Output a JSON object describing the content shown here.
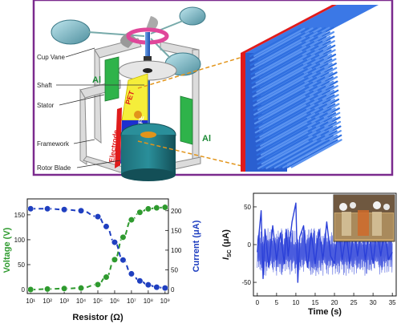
{
  "schematic": {
    "labels": {
      "cup_vane": "Cup Vane",
      "shaft": "Shaft",
      "stator": "Stator",
      "framework": "Framework",
      "rotor_blade": "Rotor Blade",
      "al_left": "Al",
      "al_right": "Al",
      "pet": "PET",
      "ptfe": "PTFE",
      "electrode": "Electrode"
    },
    "colors": {
      "frame_border": "#7b2a8e",
      "nanowire": "#2f6fe0",
      "substrate_edge": "#e01b1b",
      "aluminium": "#2fb34a",
      "pet": "#f5ee3a",
      "ptfe_electrode": "#1d2fd0",
      "cup": "#6fb3c2",
      "connector": "#e2941a"
    }
  },
  "chart_data": [
    {
      "type": "line",
      "xlabel": "Resistor (Ω)",
      "ylabel_left": "Voltage (V)",
      "ylabel_right": "Current (μA)",
      "x_scale": "log",
      "x_ticks": [
        "10¹",
        "10²",
        "10³",
        "10⁴",
        "10⁵",
        "10⁶",
        "10⁷",
        "10⁸",
        "10⁹"
      ],
      "x_tick_values": [
        1,
        2,
        3,
        4,
        5,
        6,
        7,
        8,
        9
      ],
      "y_left_ticks": [
        "0",
        "50",
        "100",
        "150"
      ],
      "y_left_tick_values": [
        0,
        50,
        100,
        150
      ],
      "y_right_ticks": [
        "0",
        "50",
        "100",
        "150",
        "200"
      ],
      "y_right_tick_values": [
        0,
        50,
        100,
        150,
        200
      ],
      "ylim_left": [
        -8,
        182
      ],
      "ylim_right": [
        -10,
        230
      ],
      "xlim": [
        0.8,
        9.2
      ],
      "series": [
        {
          "axis": "left",
          "color": "#2e9a2e",
          "log10_x": [
            1,
            2,
            3,
            4,
            5,
            5.5,
            6,
            6.5,
            7,
            7.5,
            8,
            8.5,
            9
          ],
          "values": [
            0,
            1,
            2,
            3,
            10,
            25,
            60,
            105,
            140,
            155,
            162,
            164,
            165
          ]
        },
        {
          "axis": "right",
          "color": "#1f3fc0",
          "log10_x": [
            1,
            2,
            3,
            4,
            5,
            5.5,
            6,
            6.5,
            7,
            7.5,
            8,
            8.5,
            9
          ],
          "values": [
            205,
            205,
            203,
            200,
            185,
            160,
            120,
            75,
            40,
            22,
            12,
            6,
            4
          ]
        }
      ]
    },
    {
      "type": "line",
      "xlabel": "Time (s)",
      "x_ticks": [
        "0",
        "5",
        "10",
        "15",
        "20",
        "25",
        "30",
        "35"
      ],
      "x_tick_values": [
        0,
        5,
        10,
        15,
        20,
        25,
        30,
        35
      ],
      "y_ticks": [
        "-50",
        "0",
        "50"
      ],
      "y_tick_values": [
        -50,
        0,
        50
      ],
      "xlim": [
        -1,
        36
      ],
      "ylim": [
        -68,
        68
      ],
      "color": "#2a3fd8",
      "series": [
        {
          "x": [
            0,
            1,
            1.5,
            2,
            3,
            4,
            5,
            6,
            7,
            7.5,
            8,
            9,
            10,
            10.5,
            11,
            12,
            13,
            14,
            15,
            16,
            17,
            18,
            19,
            20,
            21,
            22,
            23,
            24,
            25,
            26,
            27,
            28,
            29,
            30,
            31,
            32,
            33,
            34,
            35
          ],
          "values": [
            -10,
            45,
            -45,
            20,
            -30,
            25,
            -20,
            15,
            -25,
            20,
            -15,
            30,
            55,
            -50,
            10,
            25,
            -30,
            15,
            -25,
            20,
            -20,
            30,
            -15,
            -25,
            25,
            -20,
            15,
            -25,
            20,
            -15,
            25,
            -20,
            15,
            -25,
            20,
            -15,
            20,
            -20,
            -10
          ]
        }
      ]
    }
  ]
}
